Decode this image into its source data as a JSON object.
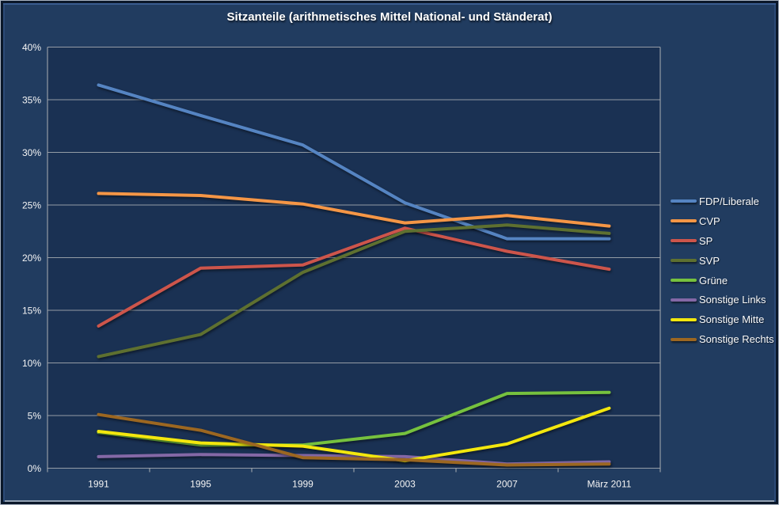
{
  "chart_data": {
    "type": "line",
    "title": "Sitzanteile (arithmetisches Mittel National- und Ständerat)",
    "categories": [
      "1991",
      "1995",
      "1999",
      "2003",
      "2007",
      "März 2011"
    ],
    "series": [
      {
        "name": "FDP/Liberale",
        "color": "#5584c2",
        "values": [
          36.4,
          33.5,
          30.7,
          25.2,
          21.8,
          21.8
        ]
      },
      {
        "name": "CVP",
        "color": "#f59646",
        "values": [
          26.1,
          25.9,
          25.1,
          23.3,
          24.0,
          23.0
        ]
      },
      {
        "name": "SP",
        "color": "#cd554b",
        "values": [
          13.5,
          19.0,
          19.3,
          22.8,
          20.6,
          18.9
        ]
      },
      {
        "name": "SVP",
        "color": "#5e7030",
        "values": [
          10.6,
          12.7,
          18.6,
          22.5,
          23.1,
          22.3
        ]
      },
      {
        "name": "Grüne",
        "color": "#76c13e",
        "values": [
          3.4,
          2.2,
          2.2,
          3.3,
          7.1,
          7.2
        ]
      },
      {
        "name": "Sonstige Links",
        "color": "#8468a6",
        "values": [
          1.1,
          1.3,
          1.2,
          1.1,
          0.4,
          0.6
        ]
      },
      {
        "name": "Sonstige Mitte",
        "color": "#f3e70e",
        "values": [
          3.5,
          2.4,
          2.1,
          0.7,
          2.3,
          5.7
        ]
      },
      {
        "name": "Sonstige Rechts",
        "color": "#9c6721",
        "values": [
          5.1,
          3.6,
          1.0,
          0.8,
          0.3,
          0.4
        ]
      }
    ],
    "ylim": [
      0,
      40
    ],
    "ytick_step": 5,
    "ytick_suffix": "%",
    "grid": "horizontal",
    "legend_position": "right"
  },
  "colors": {
    "chart_background": "#213c60",
    "plot_background": "#1a3153",
    "gridline": "#aaafb4",
    "axis_text": "#f5f5f5",
    "title_text": "#ffffff"
  }
}
